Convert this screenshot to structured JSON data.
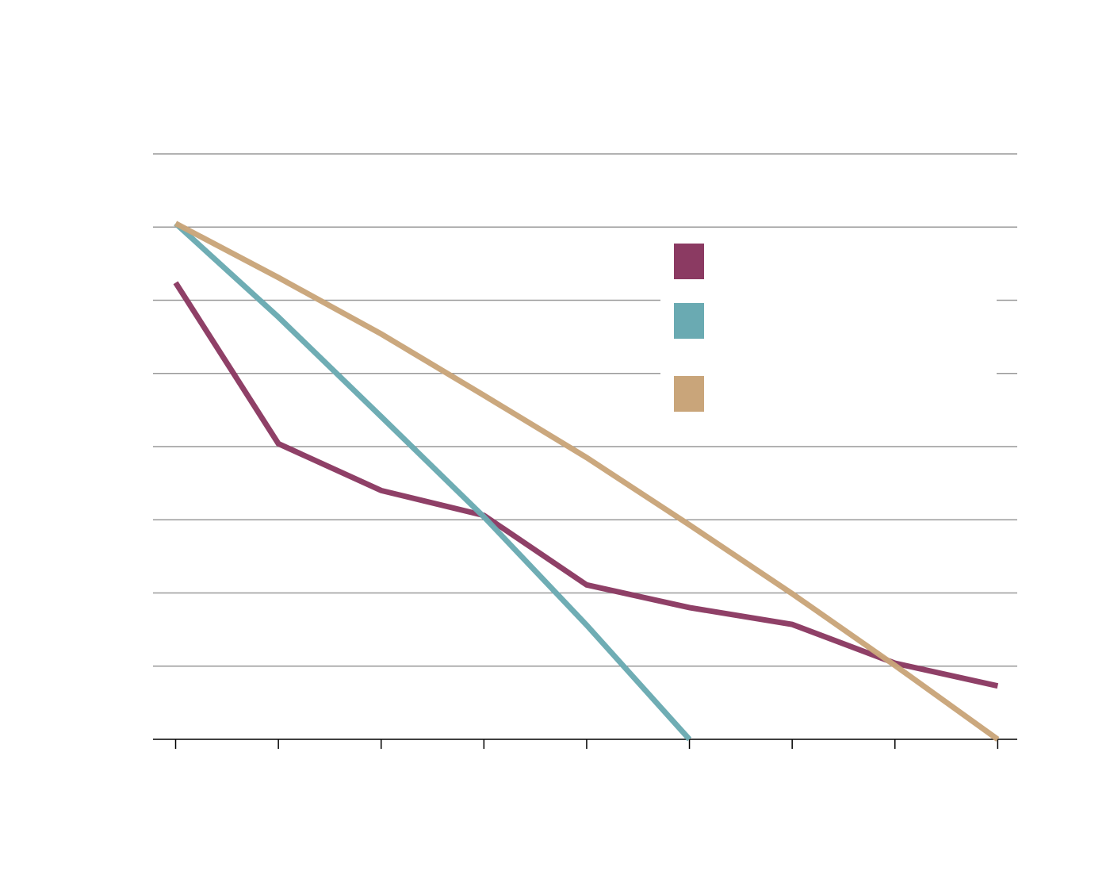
{
  "chart_data": {
    "type": "line",
    "x": [
      0,
      1,
      2,
      3,
      4,
      5,
      6,
      7,
      8
    ],
    "xlim": [
      -0.22,
      8.19
    ],
    "xticks": [
      0,
      1,
      2,
      3,
      4,
      5,
      6,
      7,
      8
    ],
    "ylim": [
      0,
      8
    ],
    "yticks": [
      0,
      1,
      2,
      3,
      4,
      5,
      6,
      7,
      8
    ],
    "grid": true,
    "legend": "upper right",
    "series": [
      {
        "color": "#8b3a62",
        "values": [
          6.24,
          4.04,
          3.4,
          3.06,
          2.11,
          1.8,
          1.57,
          1.04,
          0.73
        ]
      },
      {
        "color": "#6aaab2",
        "values": [
          7.05,
          5.77,
          4.41,
          3.04,
          1.56,
          0,
          null,
          null,
          null
        ]
      },
      {
        "color": "#c9a57a",
        "values": [
          7.05,
          6.31,
          5.54,
          4.7,
          3.85,
          2.93,
          1.99,
          1.01,
          0
        ]
      }
    ]
  }
}
